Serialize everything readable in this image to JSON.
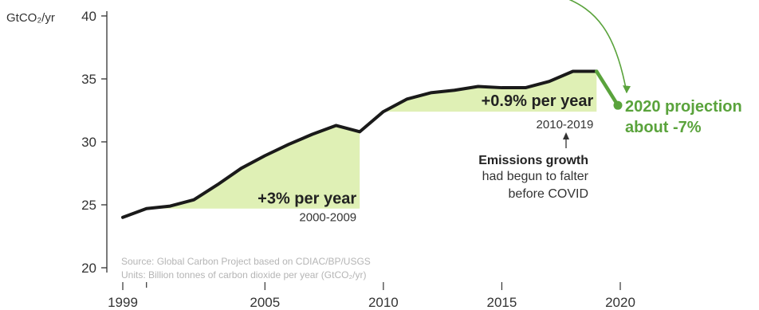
{
  "chart_data": {
    "type": "line",
    "title": "",
    "ylabel": "GtCO₂/yr",
    "xlabel": "",
    "xlim": [
      1999,
      2020
    ],
    "ylim": [
      20,
      40
    ],
    "xticks": [
      1999,
      2005,
      2010,
      2015,
      2020
    ],
    "xtick_labels": [
      "1999",
      "2005",
      "2010",
      "2015",
      "2020"
    ],
    "yticks": [
      20,
      25,
      30,
      35,
      40
    ],
    "ytick_labels": [
      "20",
      "25",
      "30",
      "35",
      "40"
    ],
    "grid": false,
    "series": [
      {
        "name": "",
        "x": [
          1999,
          2000,
          2001,
          2002,
          2003,
          2004,
          2005,
          2006,
          2007,
          2008,
          2009,
          2010,
          2011,
          2012,
          2013,
          2014,
          2015,
          2016,
          2017,
          2018,
          2019
        ],
        "values": [
          24.0,
          24.7,
          24.9,
          25.4,
          26.6,
          27.9,
          28.9,
          29.8,
          30.6,
          31.3,
          30.8,
          32.4,
          33.4,
          33.9,
          34.1,
          34.4,
          34.3,
          34.3,
          34.8,
          35.6,
          35.6
        ]
      }
    ],
    "projection": {
      "x": [
        2019,
        2020
      ],
      "values": [
        35.6,
        32.9
      ]
    },
    "bands": [
      {
        "x_start": 2000,
        "x_end": 2009,
        "base": 24.7,
        "label": "+3% per year",
        "years": "2000-2009"
      },
      {
        "x_start": 2010,
        "x_end": 2019,
        "base": 32.4,
        "label": "+0.9% per year",
        "years": "2010-2019"
      }
    ],
    "annotations": {
      "projection_line1": "2020 projection",
      "projection_line2": "about -7%",
      "falter_bold": "Emissions growth",
      "falter_line2": "had begun to falter",
      "falter_line3": "before COVID",
      "source_line1": "Source: Global Carbon Project based on CDIAC/BP/USGS",
      "source_line2": "Units: Billion tonnes of carbon dioxide per year (GtCO₂/yr)"
    },
    "colors": {
      "line": "#1a1a1a",
      "band_fill": "#dff0b5",
      "projection": "#5aa33c",
      "axis": "#333333",
      "source_text": "#b5b5b5"
    }
  }
}
